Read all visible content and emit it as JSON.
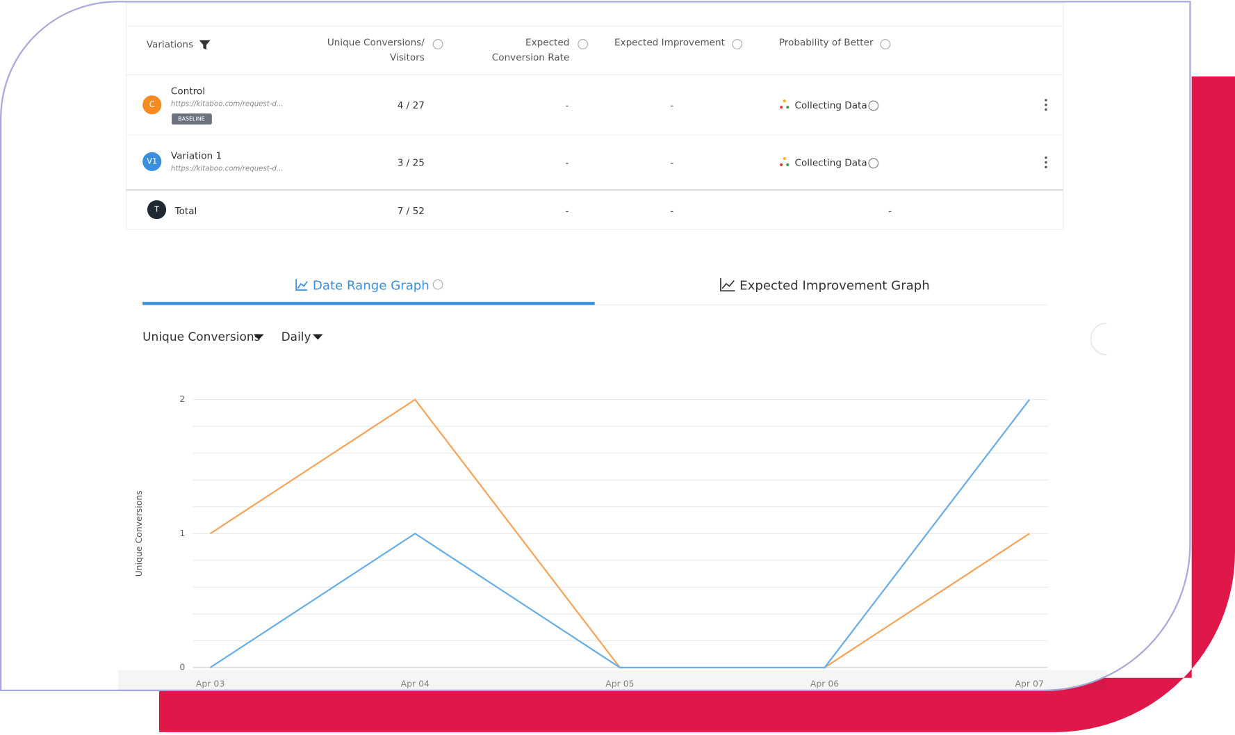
{
  "table": {
    "headers": [
      "Variations",
      "Unique Conversions/",
      "Visitors",
      "Expected",
      "Conversion Rate",
      "Expected Improvement",
      "Probability of Better"
    ],
    "rows": [
      {
        "avatar": "C",
        "name": "Control",
        "url": "https://kitaboo.com/request-d...",
        "badge": "BASELINE",
        "conversions": "4 / 27",
        "rate": "-",
        "improvement": "-",
        "probability": "Collecting Data"
      },
      {
        "avatar": "V1",
        "name": "Variation 1",
        "url": "https://kitaboo.com/request-d...",
        "conversions": "3 / 25",
        "rate": "-",
        "improvement": "-",
        "probability": "Collecting Data"
      }
    ],
    "total": {
      "avatar": "T",
      "name": "Total",
      "conversions": "7 / 52",
      "rate": "-",
      "improvement": "-",
      "probability": "-"
    }
  },
  "tabs": [
    "Date Range Graph",
    "Expected Improvement Graph"
  ],
  "dropdowns": [
    "Unique Conversions",
    "Daily"
  ],
  "chart_data": {
    "type": "line",
    "ylabel": "Unique Conversions",
    "categories": [
      "Apr 03",
      "Apr 04",
      "Apr 05",
      "Apr 06",
      "Apr 07"
    ],
    "series": [
      {
        "color": "#f5a55a",
        "values": [
          1,
          2,
          0,
          0,
          1
        ]
      },
      {
        "color": "#6aaee6",
        "values": [
          0,
          1,
          0,
          0,
          2
        ]
      }
    ],
    "ylim": [
      0,
      2
    ],
    "yticks": [
      0,
      1,
      2
    ],
    "ygrid": [
      0,
      0.2,
      0.4,
      0.6,
      0.8,
      1,
      1.2,
      1.4,
      1.6,
      1.8,
      2
    ]
  }
}
